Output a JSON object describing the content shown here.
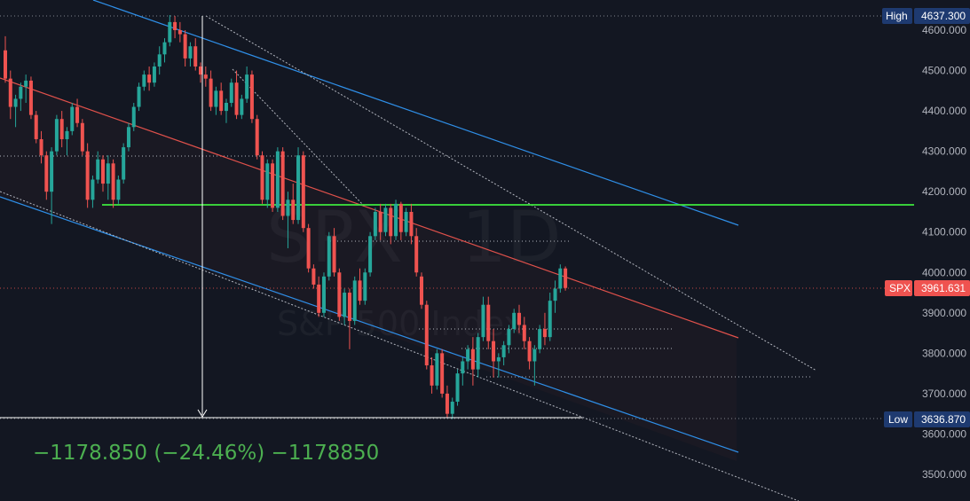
{
  "chart_data": {
    "type": "candlestick",
    "symbol": "SPX",
    "interval": "1D",
    "name": "S&P 500 Index",
    "ylim": [
      3450,
      4670
    ],
    "y_ticks": [
      "4600.000",
      "4500.000",
      "4400.000",
      "4300.000",
      "4200.000",
      "4100.000",
      "4000.000",
      "3900.000",
      "3800.000",
      "3700.000",
      "3600.000",
      "3500.000"
    ],
    "y_tick_values": [
      4600,
      4500,
      4400,
      4300,
      4200,
      4100,
      4000,
      3900,
      3800,
      3700,
      3600,
      3500
    ],
    "high": {
      "label": "High",
      "value_label": "4637.300",
      "value": 4637.3
    },
    "low": {
      "label": "Low",
      "value_label": "3636.870",
      "value": 3636.87
    },
    "last": {
      "label": "SPX",
      "value_label": "3961.631",
      "value": 3961.631
    },
    "measurement": {
      "text": "−1178.850 (−24.46%) −1178850"
    },
    "support_level": 4167,
    "colors": {
      "background": "#131722",
      "up": "#26a69a",
      "down": "#ef5350",
      "support": "#3ee83e",
      "channel": "#2f8fe8",
      "midline": "#e0514b",
      "dotted": "#b2b5be",
      "high_tag": "#1e3a70",
      "low_tag": "#1e3a70",
      "last_tag": "#ef5350"
    },
    "candles": [
      [
        4550,
        4585,
        4470,
        4480
      ],
      [
        4480,
        4500,
        4380,
        4410
      ],
      [
        4410,
        4440,
        4360,
        4430
      ],
      [
        4430,
        4470,
        4400,
        4460
      ],
      [
        4460,
        4490,
        4420,
        4475
      ],
      [
        4475,
        4485,
        4380,
        4390
      ],
      [
        4390,
        4400,
        4320,
        4330
      ],
      [
        4330,
        4350,
        4270,
        4290
      ],
      [
        4290,
        4300,
        4180,
        4200
      ],
      [
        4200,
        4310,
        4120,
        4300
      ],
      [
        4300,
        4390,
        4290,
        4380
      ],
      [
        4380,
        4400,
        4310,
        4330
      ],
      [
        4330,
        4360,
        4290,
        4350
      ],
      [
        4350,
        4420,
        4340,
        4410
      ],
      [
        4410,
        4430,
        4360,
        4370
      ],
      [
        4370,
        4380,
        4290,
        4300
      ],
      [
        4300,
        4320,
        4160,
        4180
      ],
      [
        4180,
        4240,
        4160,
        4230
      ],
      [
        4230,
        4300,
        4220,
        4280
      ],
      [
        4280,
        4290,
        4200,
        4220
      ],
      [
        4220,
        4290,
        4180,
        4270
      ],
      [
        4270,
        4280,
        4160,
        4180
      ],
      [
        4180,
        4240,
        4170,
        4230
      ],
      [
        4230,
        4320,
        4220,
        4310
      ],
      [
        4310,
        4370,
        4300,
        4360
      ],
      [
        4360,
        4420,
        4350,
        4410
      ],
      [
        4410,
        4470,
        4400,
        4460
      ],
      [
        4460,
        4500,
        4450,
        4490
      ],
      [
        4490,
        4510,
        4450,
        4470
      ],
      [
        4470,
        4520,
        4460,
        4510
      ],
      [
        4510,
        4560,
        4490,
        4540
      ],
      [
        4540,
        4580,
        4520,
        4570
      ],
      [
        4570,
        4637.3,
        4560,
        4620
      ],
      [
        4620,
        4635,
        4580,
        4600
      ],
      [
        4600,
        4620,
        4570,
        4590
      ],
      [
        4590,
        4600,
        4510,
        4530
      ],
      [
        4530,
        4570,
        4510,
        4560
      ],
      [
        4560,
        4580,
        4500,
        4510
      ],
      [
        4510,
        4520,
        4470,
        4490
      ],
      [
        4490,
        4510,
        4460,
        4480
      ],
      [
        4480,
        4500,
        4400,
        4410
      ],
      [
        4410,
        4460,
        4390,
        4450
      ],
      [
        4450,
        4470,
        4390,
        4400
      ],
      [
        4400,
        4430,
        4370,
        4420
      ],
      [
        4420,
        4480,
        4410,
        4470
      ],
      [
        4470,
        4500,
        4380,
        4390
      ],
      [
        4390,
        4440,
        4380,
        4430
      ],
      [
        4430,
        4510,
        4420,
        4490
      ],
      [
        4490,
        4500,
        4370,
        4380
      ],
      [
        4380,
        4390,
        4280,
        4290
      ],
      [
        4290,
        4300,
        4170,
        4180
      ],
      [
        4180,
        4280,
        4160,
        4270
      ],
      [
        4270,
        4280,
        4150,
        4160
      ],
      [
        4160,
        4310,
        4150,
        4300
      ],
      [
        4300,
        4310,
        4130,
        4140
      ],
      [
        4140,
        4200,
        4060,
        4180
      ],
      [
        4180,
        4220,
        4120,
        4130
      ],
      [
        4130,
        4310,
        4120,
        4290
      ],
      [
        4290,
        4300,
        4100,
        4110
      ],
      [
        4110,
        4120,
        4000,
        4010
      ],
      [
        4010,
        4020,
        3960,
        3970
      ],
      [
        3970,
        3990,
        3890,
        3900
      ],
      [
        3900,
        4000,
        3890,
        3990
      ],
      [
        3990,
        4100,
        3980,
        4090
      ],
      [
        4090,
        4110,
        3990,
        4000
      ],
      [
        4000,
        4010,
        3880,
        3890
      ],
      [
        3890,
        3960,
        3870,
        3950
      ],
      [
        3950,
        3960,
        3810,
        3880
      ],
      [
        3880,
        3990,
        3870,
        3980
      ],
      [
        3980,
        4010,
        3920,
        3930
      ],
      [
        3930,
        4010,
        3920,
        4000
      ],
      [
        4000,
        4100,
        3990,
        4090
      ],
      [
        4090,
        4160,
        4080,
        4150
      ],
      [
        4150,
        4170,
        4080,
        4100
      ],
      [
        4100,
        4170,
        4090,
        4160
      ],
      [
        4160,
        4170,
        4070,
        4090
      ],
      [
        4090,
        4180,
        4080,
        4170
      ],
      [
        4170,
        4175,
        4080,
        4100
      ],
      [
        4100,
        4160,
        4090,
        4150
      ],
      [
        4150,
        4170,
        4070,
        4090
      ],
      [
        4090,
        4110,
        3990,
        4000
      ],
      [
        3990,
        4000,
        3910,
        3920
      ],
      [
        3920,
        3930,
        3760,
        3770
      ],
      [
        3770,
        3790,
        3700,
        3720
      ],
      [
        3720,
        3810,
        3710,
        3800
      ],
      [
        3800,
        3810,
        3690,
        3700
      ],
      [
        3700,
        3720,
        3640,
        3650
      ],
      [
        3650,
        3690,
        3636.87,
        3680
      ],
      [
        3680,
        3760,
        3670,
        3750
      ],
      [
        3750,
        3790,
        3720,
        3780
      ],
      [
        3780,
        3820,
        3760,
        3810
      ],
      [
        3810,
        3840,
        3720,
        3760
      ],
      [
        3760,
        3850,
        3740,
        3840
      ],
      [
        3840,
        3940,
        3830,
        3920
      ],
      [
        3920,
        3940,
        3810,
        3830
      ],
      [
        3830,
        3860,
        3740,
        3780
      ],
      [
        3780,
        3800,
        3740,
        3790
      ],
      [
        3790,
        3830,
        3770,
        3820
      ],
      [
        3820,
        3870,
        3800,
        3860
      ],
      [
        3860,
        3910,
        3850,
        3900
      ],
      [
        3900,
        3920,
        3850,
        3870
      ],
      [
        3870,
        3890,
        3810,
        3830
      ],
      [
        3830,
        3840,
        3760,
        3780
      ],
      [
        3780,
        3820,
        3720,
        3810
      ],
      [
        3810,
        3870,
        3800,
        3860
      ],
      [
        3860,
        3900,
        3820,
        3840
      ],
      [
        3840,
        3950,
        3830,
        3930
      ],
      [
        3930,
        3980,
        3900,
        3960
      ],
      [
        3960,
        4020,
        3950,
        4010
      ],
      [
        4010,
        4015,
        3955,
        3961.631
      ]
    ]
  }
}
